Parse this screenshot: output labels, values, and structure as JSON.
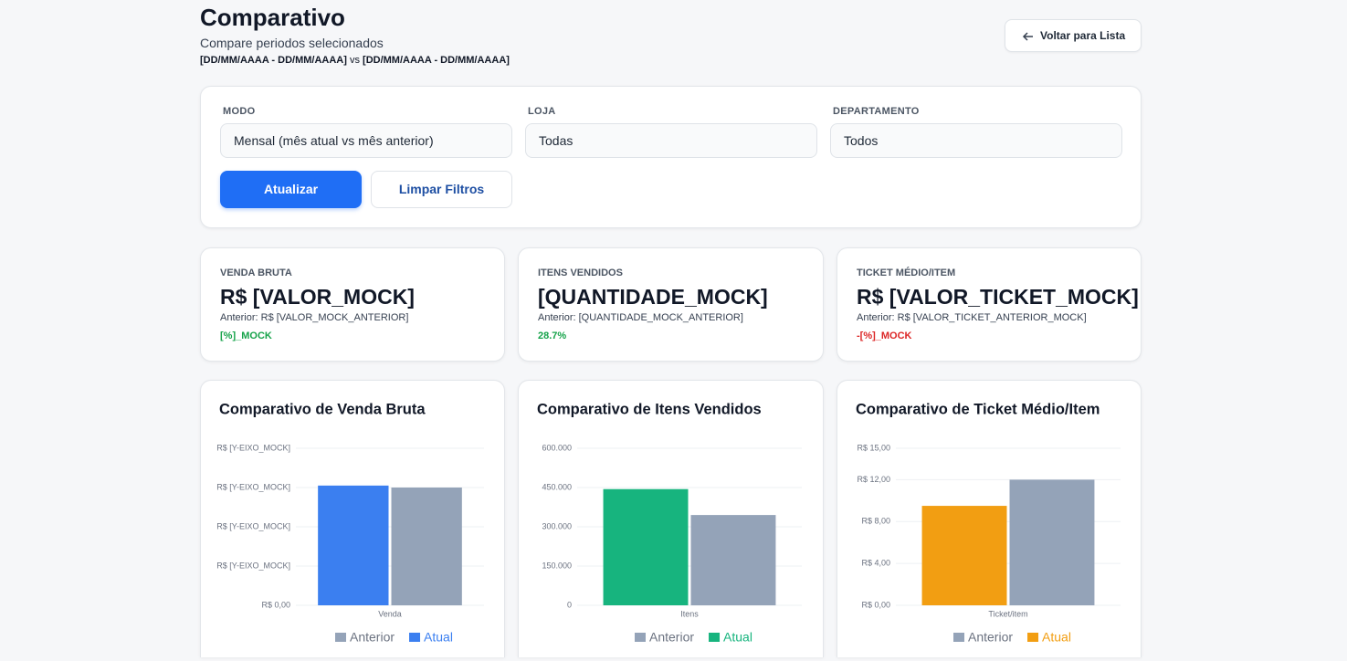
{
  "header": {
    "title": "Comparativo",
    "subtitle": "Compare periodos selecionados",
    "period_current": "[DD/MM/AAAA - DD/MM/AAAA]",
    "period_separator": "vs",
    "period_previous": "[DD/MM/AAAA - DD/MM/AAAA]",
    "back_button": "Voltar para Lista"
  },
  "filters": {
    "fields": [
      {
        "label": "MODO",
        "value": "Mensal (mês atual vs mês anterior)"
      },
      {
        "label": "LOJA",
        "value": "Todas"
      },
      {
        "label": "DEPARTAMENTO",
        "value": "Todos"
      }
    ],
    "apply_button": "Atualizar",
    "clear_button": "Limpar Filtros"
  },
  "kpis": [
    {
      "label": "VENDA BRUTA",
      "value": "R$ [VALOR_MOCK]",
      "previous": "Anterior: R$ [VALOR_MOCK_ANTERIOR]",
      "change": "[%]_MOCK",
      "change_color": "#16a34a"
    },
    {
      "label": "ITENS VENDIDOS",
      "value": "[QUANTIDADE_MOCK]",
      "previous": "Anterior: [QUANTIDADE_MOCK_ANTERIOR]",
      "change": "28.7%",
      "change_color": "#16a34a"
    },
    {
      "label": "TICKET MÉDIO/ITEM",
      "value": "R$ [VALOR_TICKET_MOCK]",
      "previous": "Anterior: R$ [VALOR_TICKET_ANTERIOR_MOCK]",
      "change": "-[%]_MOCK",
      "change_color": "#dc2626"
    }
  ],
  "chart_data": [
    {
      "type": "bar",
      "title": "Comparativo de Venda Bruta",
      "categories": [
        "Venda"
      ],
      "series": [
        {
          "name": "Anterior",
          "color": "#94a3b8",
          "values": [
            3.0
          ]
        },
        {
          "name": "Atual",
          "color": "#3b7ff0",
          "values": [
            3.05
          ]
        }
      ],
      "ylim": [
        0,
        4
      ],
      "yticks": [
        {
          "value": 0,
          "label": "R$ 0,00"
        },
        {
          "value": 1,
          "label": "R$ [Y-EIXO_MOCK]"
        },
        {
          "value": 2,
          "label": "R$ [Y-EIXO_MOCK]"
        },
        {
          "value": 3,
          "label": "R$ [Y-EIXO_MOCK]"
        },
        {
          "value": 4,
          "label": "R$ [Y-EIXO_MOCK]"
        }
      ],
      "grid": true
    },
    {
      "type": "bar",
      "title": "Comparativo de Itens Vendidos",
      "categories": [
        "Itens"
      ],
      "series": [
        {
          "name": "Anterior",
          "color": "#94a3b8",
          "values": [
            345000
          ]
        },
        {
          "name": "Atual",
          "color": "#17b47e",
          "values": [
            444000
          ]
        }
      ],
      "ylim": [
        0,
        600000
      ],
      "yticks": [
        0,
        {
          "value": 150000,
          "label": "150.000"
        },
        {
          "value": 300000,
          "label": "300.000"
        },
        {
          "value": 450000,
          "label": "450.000"
        },
        {
          "value": 600000,
          "label": "600.000"
        }
      ],
      "grid": true
    },
    {
      "type": "bar",
      "title": "Comparativo de Ticket Médio/Item",
      "categories": [
        "Ticket/item"
      ],
      "series": [
        {
          "name": "Anterior",
          "color": "#94a3b8",
          "values": [
            12.0
          ]
        },
        {
          "name": "Atual",
          "color": "#f29e12",
          "values": [
            9.5
          ]
        }
      ],
      "ylim": [
        0,
        15
      ],
      "yticks": [
        {
          "value": 0,
          "label": "R$ 0,00"
        },
        {
          "value": 4,
          "label": "R$ 4,00"
        },
        {
          "value": 8,
          "label": "R$ 8,00"
        },
        {
          "value": 12,
          "label": "R$ 12,00"
        },
        {
          "value": 15,
          "label": "R$ 15,00"
        }
      ],
      "grid": true
    }
  ]
}
